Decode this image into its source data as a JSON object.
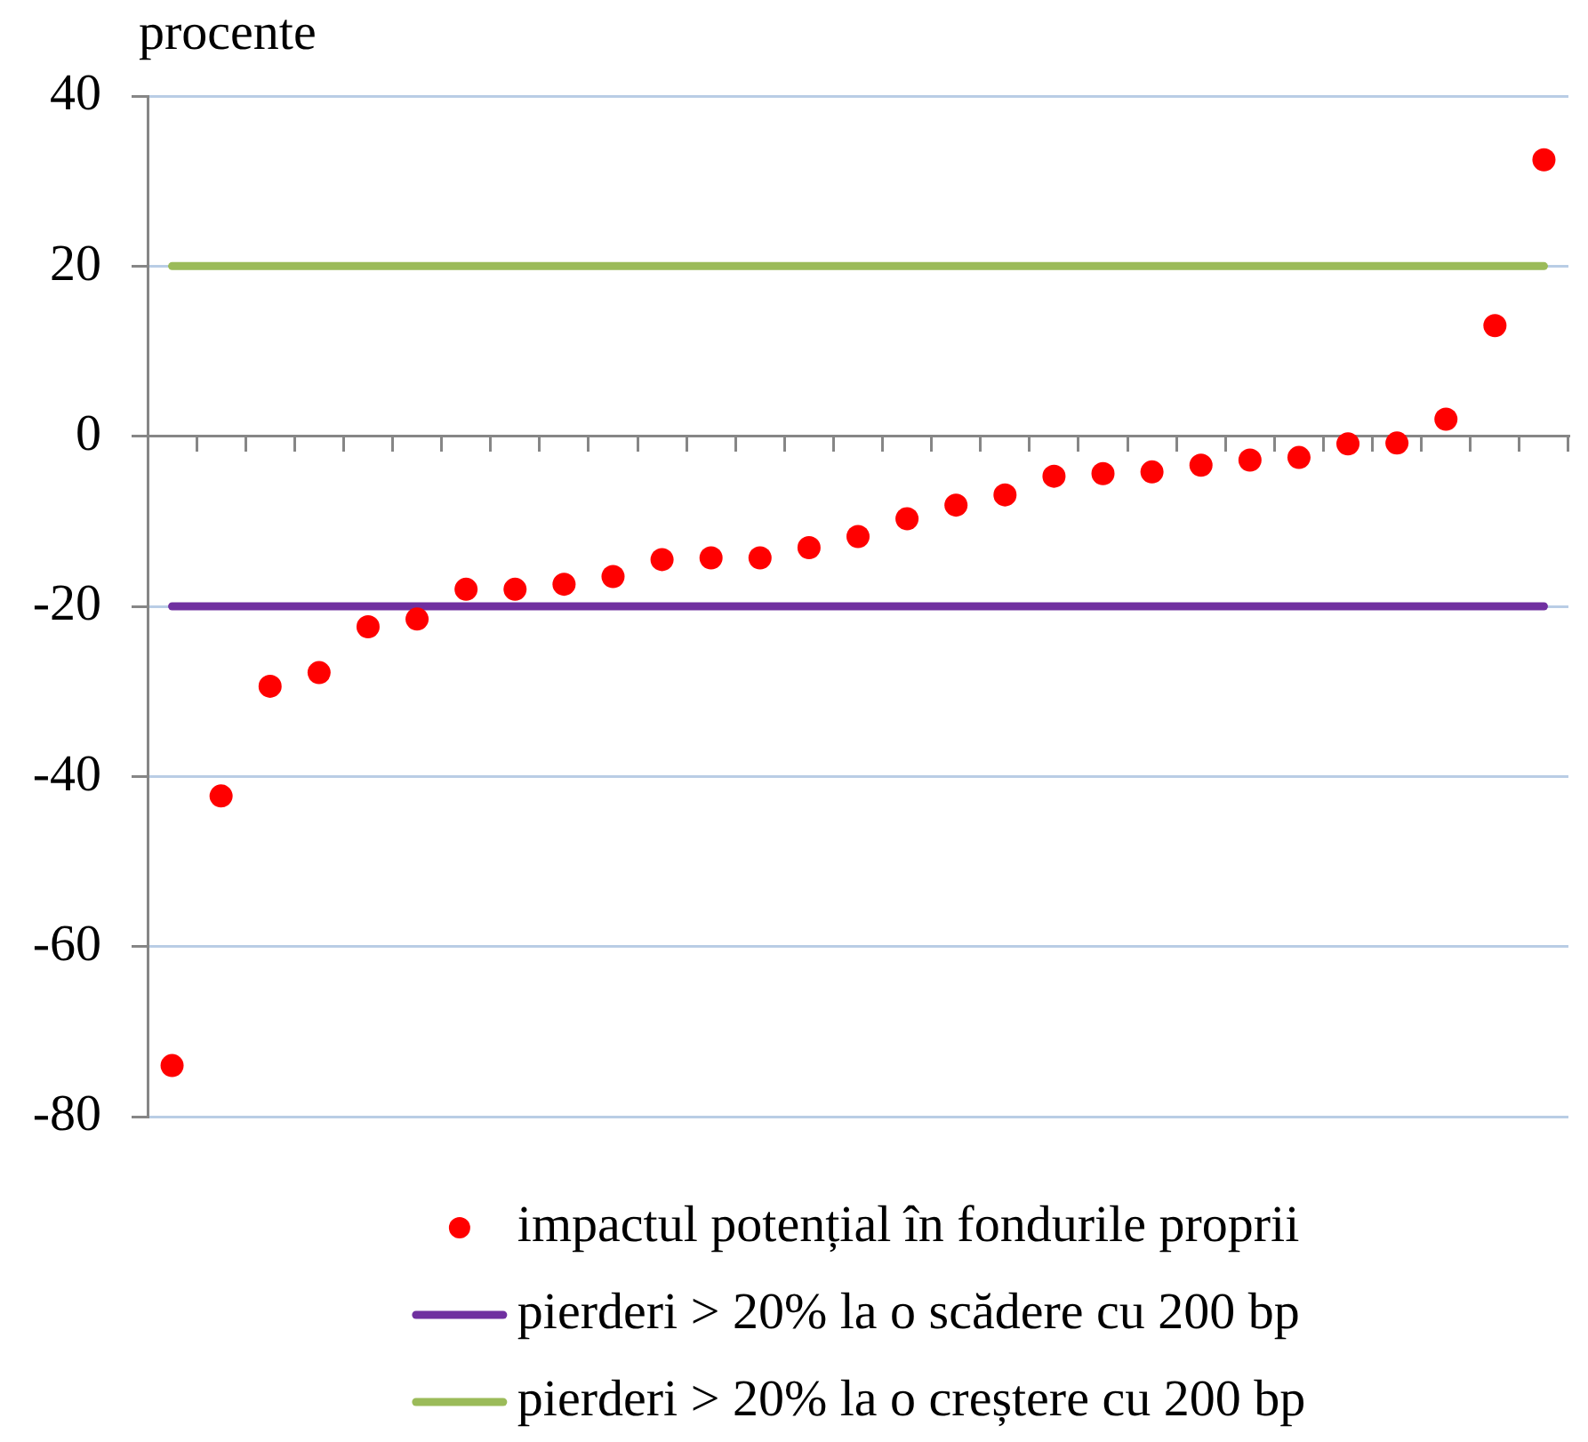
{
  "chart_data": {
    "type": "scatter",
    "ylabel": "procente",
    "categories": [
      null,
      null,
      null,
      null,
      null,
      null,
      null,
      null,
      null,
      null,
      null,
      null,
      null,
      null,
      null,
      null,
      null,
      null,
      null,
      null,
      null,
      null,
      null,
      null,
      null,
      null,
      null,
      null,
      null
    ],
    "series": [
      {
        "name": "impactul potențial în fondurile proprii",
        "color": "#ff0000",
        "values": [
          -74,
          -42.3,
          -29.4,
          -27.8,
          -22.4,
          -21.5,
          -18,
          -18,
          -17.4,
          -16.5,
          -14.5,
          -14.3,
          -14.3,
          -13.1,
          -11.8,
          -9.7,
          -8.1,
          -6.9,
          -4.7,
          -4.4,
          -4.2,
          -3.4,
          -2.8,
          -2.5,
          -0.9,
          -0.8,
          2,
          13,
          32.5
        ]
      },
      {
        "name": "pierderi > 20% la o scădere cu 200 bp",
        "type": "line",
        "marker": "none",
        "color": "#7030a0",
        "values": [
          -20,
          -20,
          -20,
          -20,
          -20,
          -20,
          -20,
          -20,
          -20,
          -20,
          -20,
          -20,
          -20,
          -20,
          -20,
          -20,
          -20,
          -20,
          -20,
          -20,
          -20,
          -20,
          -20,
          -20,
          -20,
          -20,
          -20,
          -20,
          -20
        ]
      },
      {
        "name": "pierderi > 20% la o creștere cu 200 bp",
        "type": "line",
        "marker": "none",
        "color": "#9bbb59",
        "values": [
          20,
          20,
          20,
          20,
          20,
          20,
          20,
          20,
          20,
          20,
          20,
          20,
          20,
          20,
          20,
          20,
          20,
          20,
          20,
          20,
          20,
          20,
          20,
          20,
          20,
          20,
          20,
          20,
          20
        ]
      }
    ],
    "ylim": [
      -80,
      40
    ],
    "yticks": [
      -80,
      -60,
      -40,
      -20,
      0,
      20,
      40
    ],
    "grid": "y",
    "legend": "bottom",
    "marker": "circle",
    "line_style": "solid",
    "tick_labels": "y"
  }
}
